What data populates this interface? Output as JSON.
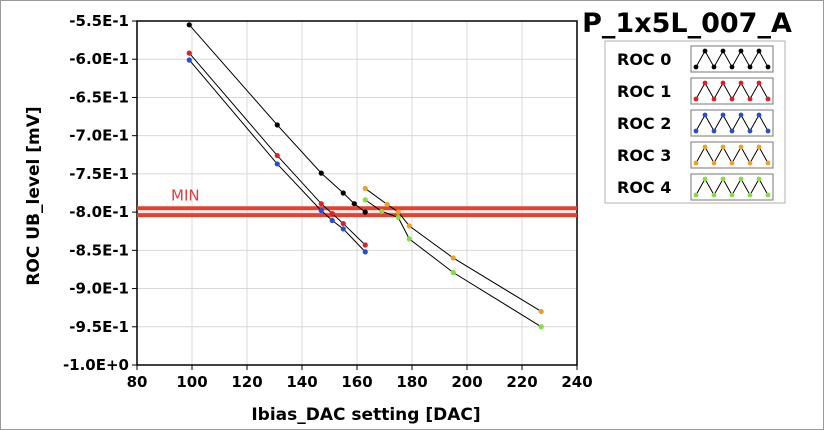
{
  "chart_data": {
    "type": "line",
    "title": "P_1x5L_007_A",
    "xlabel": "Ibias_DAC setting [DAC]",
    "ylabel": "ROC UB_level [mV]",
    "xlim": [
      80,
      240
    ],
    "ylim": [
      -1.0,
      -0.55
    ],
    "x_ticks": [
      "80",
      "100",
      "120",
      "140",
      "160",
      "180",
      "200",
      "220",
      "240"
    ],
    "y_ticks": [
      "-5.5E-1",
      "-6.0E-1",
      "-6.5E-1",
      "-7.0E-1",
      "-7.5E-1",
      "-8.0E-1",
      "-8.5E-1",
      "-9.0E-1",
      "-9.5E-1",
      "-1.0E+0"
    ],
    "grid": true,
    "legend_position": "top-right",
    "threshold": {
      "label": "MIN",
      "values": [
        -0.795,
        -0.804
      ],
      "color": "#e8402c"
    },
    "series": [
      {
        "name": "ROC 0",
        "color": "#000000",
        "x": [
          99,
          131,
          147,
          155,
          159,
          163
        ],
        "y": [
          -0.555,
          -0.686,
          -0.749,
          -0.775,
          -0.789,
          -0.8
        ]
      },
      {
        "name": "ROC 1",
        "color": "#e02020",
        "x": [
          99,
          131,
          147,
          151,
          155,
          163
        ],
        "y": [
          -0.592,
          -0.726,
          -0.789,
          -0.802,
          -0.815,
          -0.843
        ]
      },
      {
        "name": "ROC 2",
        "color": "#2050d8",
        "x": [
          99,
          131,
          147,
          151,
          155,
          163
        ],
        "y": [
          -0.601,
          -0.737,
          -0.798,
          -0.811,
          -0.822,
          -0.852
        ]
      },
      {
        "name": "ROC 3",
        "color": "#f0a020",
        "x": [
          163,
          171,
          175,
          179,
          195,
          227
        ],
        "y": [
          -0.769,
          -0.79,
          -0.8,
          -0.818,
          -0.86,
          -0.93
        ]
      },
      {
        "name": "ROC 4",
        "color": "#80e040",
        "x": [
          163,
          169,
          175,
          179,
          195,
          227
        ],
        "y": [
          -0.784,
          -0.799,
          -0.807,
          -0.835,
          -0.879,
          -0.95
        ]
      }
    ]
  }
}
